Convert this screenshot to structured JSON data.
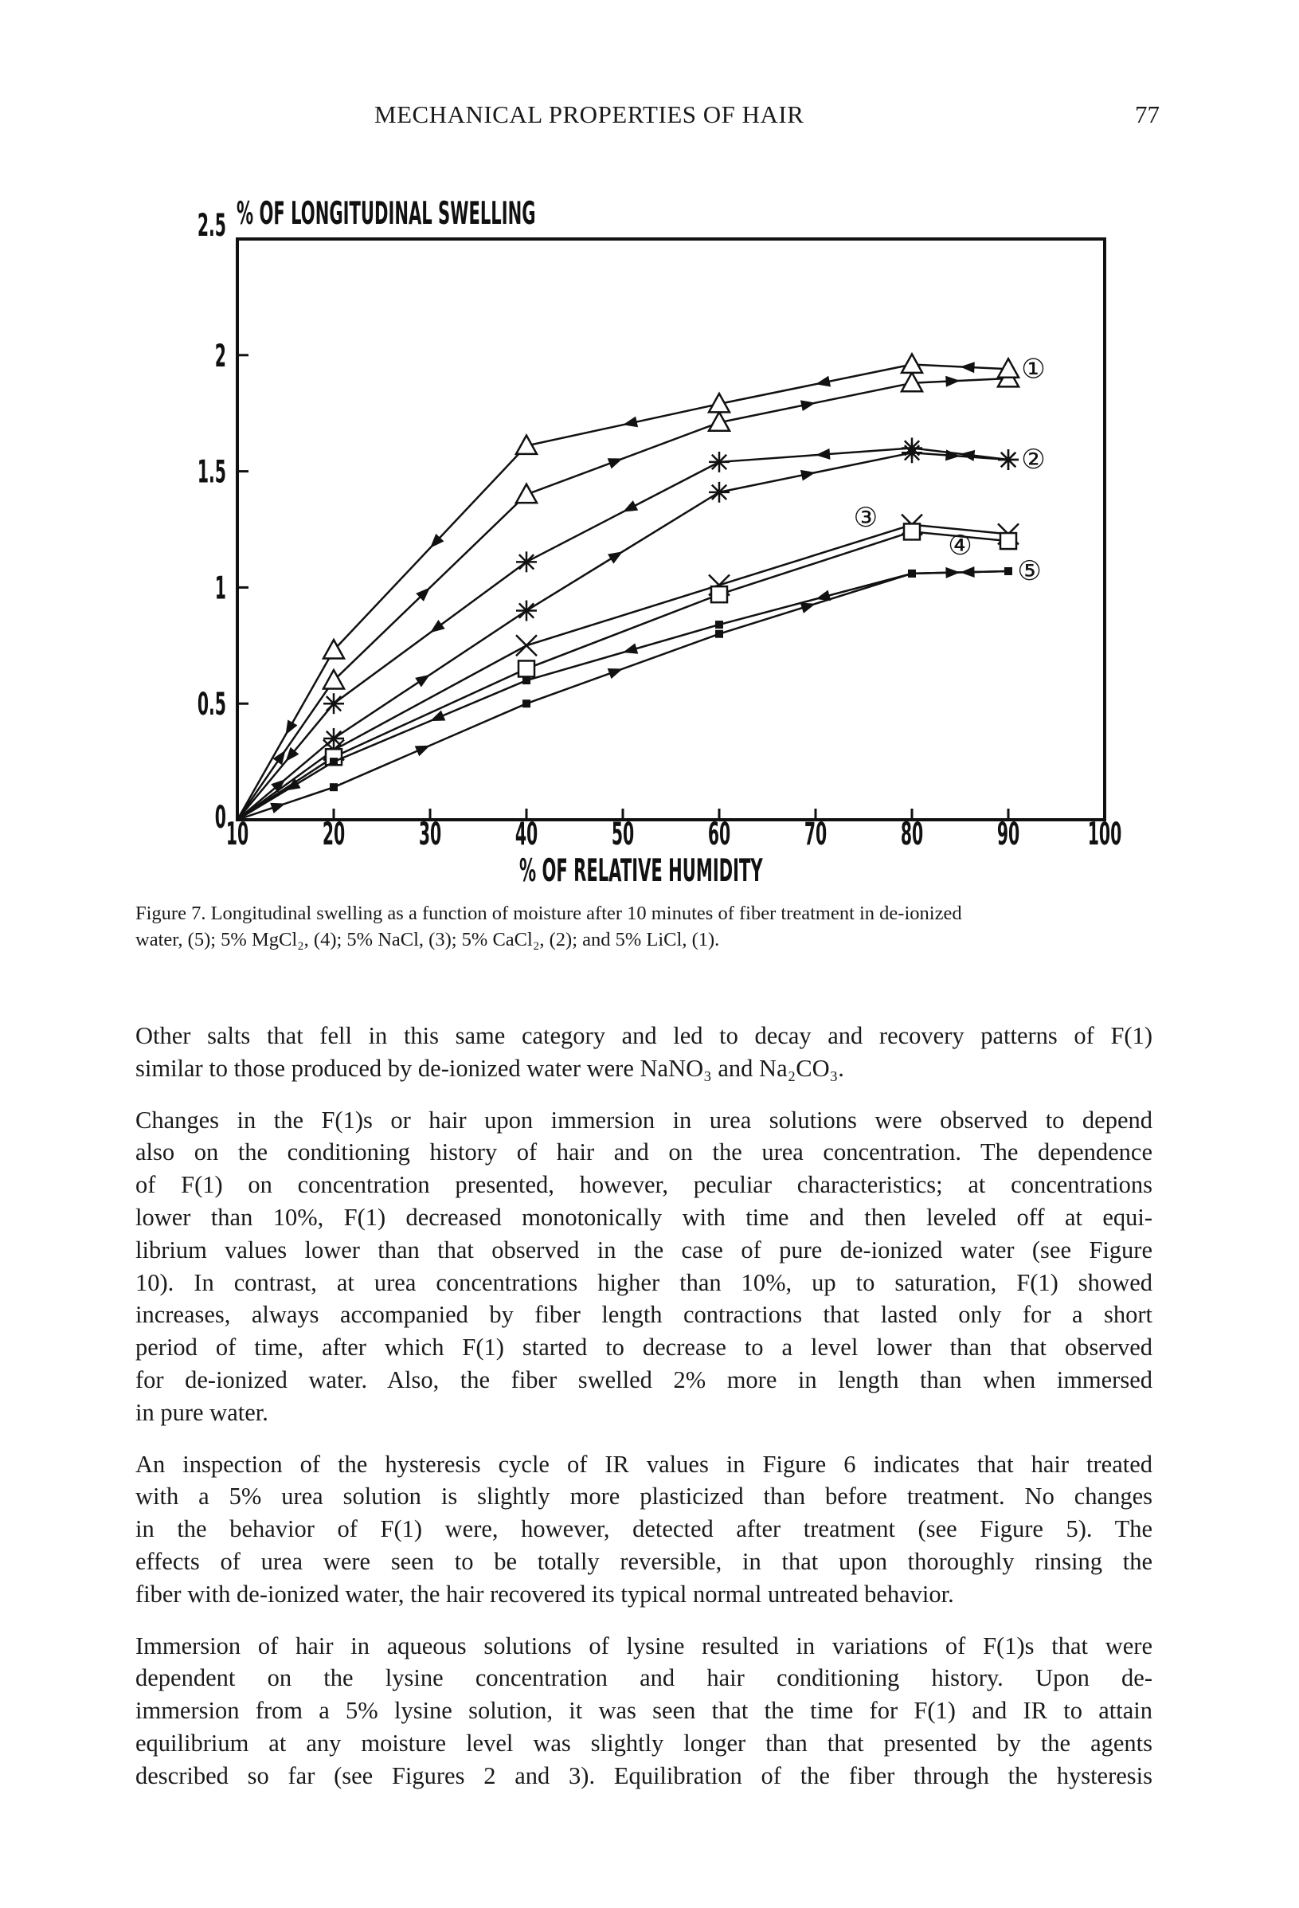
{
  "header": {
    "running_title": "MECHANICAL PROPERTIES OF HAIR",
    "page_number": "77"
  },
  "chart_data": {
    "type": "line",
    "ylabel": "% OF LONGITUDINAL SWELLING",
    "xlabel": "% OF RELATIVE HUMIDITY",
    "xlim": [
      10,
      100
    ],
    "ylim": [
      0,
      2.5
    ],
    "xticks": [
      "10",
      "20",
      "30",
      "40",
      "50",
      "60",
      "70",
      "80",
      "90",
      "100"
    ],
    "yticks": [
      "0",
      "0.5",
      "1",
      "1.5",
      "2",
      "2.5"
    ],
    "grid": false,
    "series": [
      {
        "name": "1",
        "label": "①",
        "marker": "triangle",
        "up": {
          "x": [
            10,
            20,
            40,
            60,
            80,
            90
          ],
          "y": [
            0,
            0.6,
            1.4,
            1.71,
            1.88,
            1.9
          ]
        },
        "down": {
          "x": [
            90,
            80,
            60,
            40,
            20,
            10
          ],
          "y": [
            1.94,
            1.96,
            1.79,
            1.61,
            0.73,
            0
          ]
        }
      },
      {
        "name": "2",
        "label": "②",
        "marker": "asterisk",
        "up": {
          "x": [
            10,
            20,
            40,
            60,
            80,
            90
          ],
          "y": [
            0,
            0.35,
            0.9,
            1.41,
            1.58,
            1.55
          ]
        },
        "down": {
          "x": [
            90,
            80,
            60,
            40,
            20,
            10
          ],
          "y": [
            1.55,
            1.6,
            1.54,
            1.11,
            0.5,
            0
          ]
        }
      },
      {
        "name": "3",
        "label": "③",
        "marker": "cross",
        "up": {
          "x": [
            10,
            20,
            40,
            60,
            80,
            90
          ],
          "y": [
            0,
            0.3,
            0.75,
            1.01,
            1.27,
            1.23
          ]
        }
      },
      {
        "name": "4",
        "label": "④",
        "marker": "square",
        "up": {
          "x": [
            10,
            20,
            40,
            60,
            80,
            90
          ],
          "y": [
            0,
            0.27,
            0.65,
            0.97,
            1.24,
            1.2
          ]
        }
      },
      {
        "name": "5",
        "label": "⑤",
        "marker": "dot",
        "up": {
          "x": [
            10,
            20,
            40,
            60,
            80,
            90
          ],
          "y": [
            0,
            0.14,
            0.5,
            0.8,
            1.06,
            1.07
          ]
        },
        "down": {
          "x": [
            90,
            80,
            60,
            40,
            20,
            10
          ],
          "y": [
            1.07,
            1.06,
            0.84,
            0.6,
            0.25,
            0
          ]
        }
      }
    ],
    "annotations": [
      {
        "text": "①",
        "x": 92.6,
        "y": 1.94
      },
      {
        "text": "②",
        "x": 92.6,
        "y": 1.55
      },
      {
        "text": "③",
        "x": 75.2,
        "y": 1.3
      },
      {
        "text": "④",
        "x": 85,
        "y": 1.18
      },
      {
        "text": "⑤",
        "x": 92.2,
        "y": 1.07
      }
    ]
  },
  "caption": {
    "lines": [
      "Figure 7.  Longitudinal swelling as a function of moisture after 10 minutes of fiber treatment in de-ionized",
      "water, (5); 5% MgCl₂, (4); 5% NaCl, (3); 5% CaCl₂, (2); and 5% LiCl, (1)."
    ]
  },
  "body": {
    "paragraphs": [
      [
        "Other salts that fell in this same category and led to decay and recovery patterns of F(1)",
        "similar to those produced by de-ionized water were NaNO₃ and Na₂CO₃."
      ],
      [
        "Changes in the F(1)s or hair upon immersion in urea solutions were observed to depend",
        "also on the conditioning history of hair and on the urea concentration. The dependence",
        "of F(1) on concentration presented, however, peculiar characteristics; at concentrations",
        "lower than 10%, F(1) decreased monotonically with time and then leveled off at equi-",
        "librium values lower than that observed in the case of pure de-ionized water (see Figure",
        "10). In contrast, at urea concentrations higher than 10%, up to saturation, F(1) showed",
        "increases, always accompanied by fiber length contractions that lasted only for a short",
        "period of time, after which F(1) started to decrease to a level lower than that observed",
        "for de-ionized water. Also, the fiber swelled 2% more in length than when immersed",
        "in pure water."
      ],
      [
        "An inspection of the hysteresis cycle of IR values in Figure 6 indicates that hair treated",
        "with a 5% urea solution is slightly more plasticized than before treatment. No changes",
        "in the behavior of F(1) were, however, detected after treatment (see Figure 5). The",
        "effects of urea were seen to be totally reversible, in that upon thoroughly rinsing the",
        "fiber with de-ionized water, the hair recovered its typical normal untreated behavior."
      ],
      [
        "Immersion of hair in aqueous solutions of lysine resulted in variations of F(1)s that were",
        "dependent on the lysine concentration and hair conditioning history. Upon de-",
        "immersion from a 5% lysine solution, it was seen that the time for F(1) and IR to attain",
        "equilibrium at any moisture level was slightly longer than that presented by the agents",
        "described so far (see Figures 2 and 3). Equilibration of the fiber through the hysteresis"
      ]
    ]
  }
}
